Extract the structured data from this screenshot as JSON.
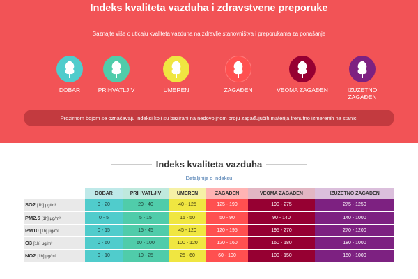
{
  "hero": {
    "title": "Indeks kvaliteta vazduha i zdravstvene preporuke",
    "subtitle": "Saznajte više o uticaju kvaliteta vazduha na zdravlje stanovništva i preporukama za ponašanje",
    "notice": "Prozirnom bojom se označavaju indeksi koji su bazirani na nedovoljnom broju zagađujućih materija trenutno izmerenih na stanici"
  },
  "levels": [
    {
      "label": "DOBAR",
      "color": "#50cccc",
      "icon": "tree-icon"
    },
    {
      "label": "PRIHVATLJIV",
      "color": "#50ccaa",
      "icon": "tree-icon"
    },
    {
      "label": "UMEREN",
      "color": "#f0e641",
      "icon": "tree-icon"
    },
    {
      "label": "ZAGAĐEN",
      "color": "#ff5050",
      "icon": "tree-icon"
    },
    {
      "label": "VEOMA ZAGAĐEN",
      "color": "#960032",
      "icon": "tree-icon"
    },
    {
      "label": "IZUZETNO ZAGAĐEN",
      "label_line1": "IZUZETNO",
      "label_line2": "ZAGAĐEN",
      "color": "#7d2181",
      "icon": "tree-icon"
    }
  ],
  "index_section": {
    "title": "Indeks kvaliteta vazduha",
    "detail_link": "Detaljinije o indeksu"
  },
  "table": {
    "headers": [
      "DOBAR",
      "PRIHVATLJIV",
      "UMEREN",
      "ZAGAĐEN",
      "VEOMA ZAGAĐEN",
      "IZUZETNO ZAGAĐEN"
    ],
    "rows": [
      {
        "pollutant": "SO2",
        "unit": "[1h] μg/m³",
        "values": [
          "0 - 20",
          "20 - 40",
          "40 - 125",
          "125 - 190",
          "190 - 275",
          "275 - 1250"
        ]
      },
      {
        "pollutant": "PM2.5",
        "unit": "[1h] μg/m³",
        "values": [
          "0 - 5",
          "5 - 15",
          "15 - 50",
          "50 - 90",
          "90 - 140",
          "140 - 1000"
        ]
      },
      {
        "pollutant": "PM10",
        "unit": "[1h] μg/m³",
        "values": [
          "0 - 15",
          "15 - 45",
          "45 - 120",
          "120 - 195",
          "195 - 270",
          "270 - 1200"
        ]
      },
      {
        "pollutant": "O3",
        "unit": "[1h] μg/m³",
        "values": [
          "0 - 60",
          "60 - 100",
          "100 - 120",
          "120 - 160",
          "160 - 180",
          "180 - 1000"
        ]
      },
      {
        "pollutant": "NO2",
        "unit": "[1h] μg/m³",
        "values": [
          "0 - 10",
          "10 - 25",
          "25 - 60",
          "60 - 100",
          "100 - 150",
          "150 - 1000"
        ]
      }
    ]
  }
}
